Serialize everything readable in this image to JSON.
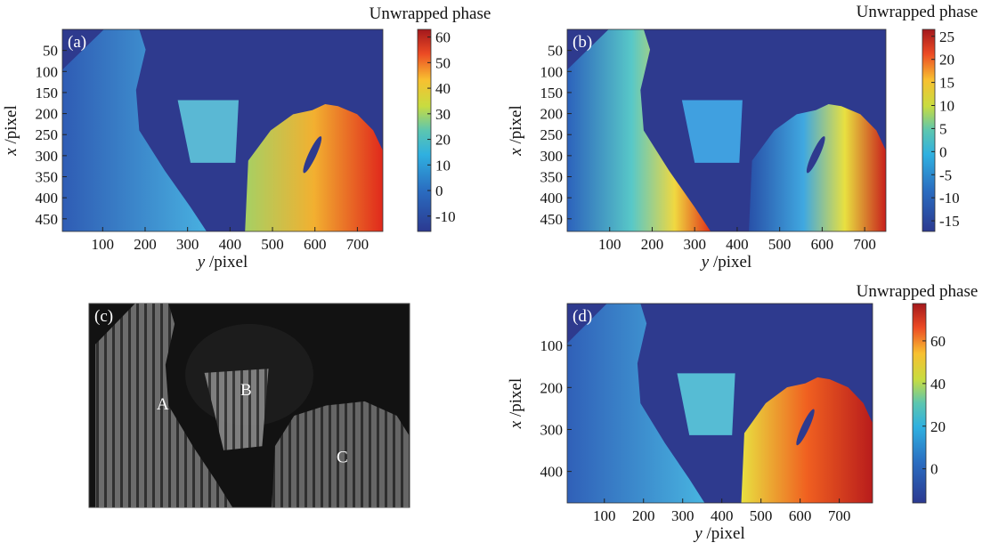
{
  "chart_data": [
    {
      "type": "heatmap",
      "label": "(a)",
      "colorbar_label": "Unwrapped phase",
      "x_label": "y /pixel",
      "y_label": "x /pixel",
      "y_inverted": true,
      "xlim": [
        5,
        760
      ],
      "ylim": [
        0,
        480
      ],
      "xticks": [
        100,
        200,
        300,
        400,
        500,
        600,
        700
      ],
      "yticks": [
        50,
        100,
        150,
        200,
        250,
        300,
        350,
        400,
        450
      ],
      "clim": [
        -16,
        63
      ],
      "cticks": [
        -10,
        0,
        10,
        20,
        30,
        40,
        50,
        60
      ]
    },
    {
      "type": "heatmap",
      "label": "(b)",
      "colorbar_label": "Unwrapped phase",
      "x_label": "y /pixel",
      "y_label": "x /pixel",
      "y_inverted": true,
      "xlim": [
        0,
        750
      ],
      "ylim": [
        0,
        480
      ],
      "xticks": [
        100,
        200,
        300,
        400,
        500,
        600,
        700
      ],
      "yticks": [
        50,
        100,
        150,
        200,
        250,
        300,
        350,
        400,
        450
      ],
      "clim": [
        -17.3,
        26.5
      ],
      "cticks": [
        -15,
        -10,
        -5,
        0,
        5,
        10,
        15,
        20,
        25
      ]
    },
    {
      "type": "image",
      "label": "(c)",
      "annotations": [
        "A",
        "B",
        "C"
      ]
    },
    {
      "type": "heatmap",
      "label": "(d)",
      "colorbar_label": "Unwrapped phase",
      "x_label": "y /pixel",
      "y_label": "x /pixel",
      "y_inverted": true,
      "xlim": [
        5,
        785
      ],
      "ylim": [
        0,
        475
      ],
      "xticks": [
        100,
        200,
        300,
        400,
        500,
        600,
        700
      ],
      "yticks": [
        100,
        200,
        300,
        400
      ],
      "clim": [
        -16,
        77.5
      ],
      "cticks": [
        0,
        20,
        40,
        60
      ]
    }
  ]
}
